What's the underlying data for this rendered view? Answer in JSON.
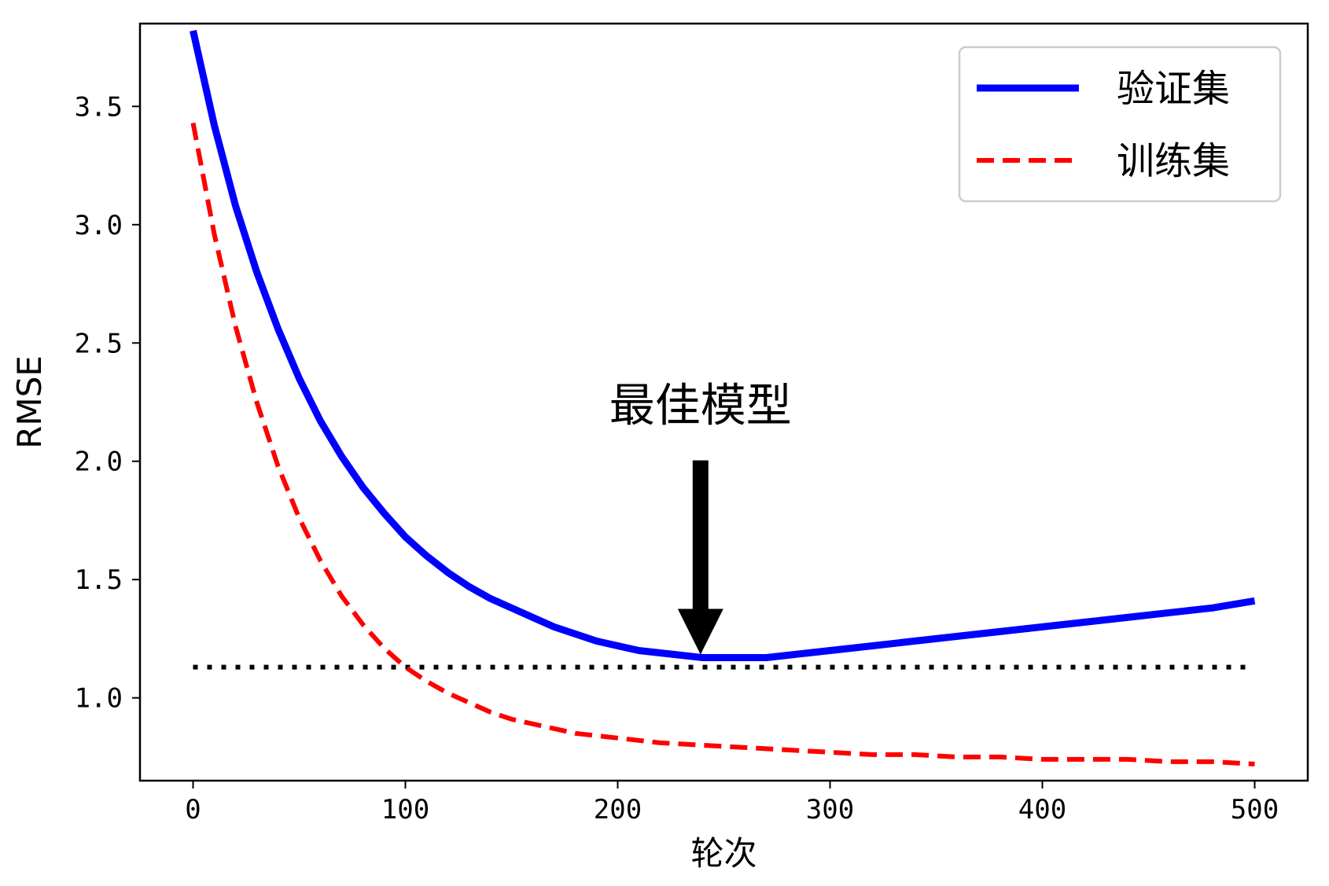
{
  "chart_data": {
    "type": "line",
    "xlabel": "轮次",
    "ylabel": "RMSE",
    "xlim": [
      -25,
      525
    ],
    "ylim": [
      0.65,
      3.85
    ],
    "xticks": [
      0,
      100,
      200,
      300,
      400,
      500
    ],
    "xtick_labels": [
      "0",
      "100",
      "200",
      "300",
      "400",
      "500"
    ],
    "yticks": [
      1.0,
      1.5,
      2.0,
      2.5,
      3.0,
      3.5
    ],
    "ytick_labels": [
      "1.0",
      "1.5",
      "2.0",
      "2.5",
      "3.0",
      "3.5"
    ],
    "grid": false,
    "legend_position": "top-right",
    "series": [
      {
        "name": "验证集",
        "color": "#0000ff",
        "style": "solid",
        "x": [
          0,
          10,
          20,
          30,
          40,
          50,
          60,
          70,
          80,
          90,
          100,
          110,
          120,
          130,
          140,
          150,
          160,
          170,
          180,
          190,
          200,
          210,
          220,
          230,
          240,
          250,
          260,
          270,
          280,
          290,
          300,
          320,
          340,
          360,
          380,
          400,
          420,
          440,
          460,
          480,
          500
        ],
        "y": [
          3.82,
          3.42,
          3.08,
          2.8,
          2.56,
          2.35,
          2.17,
          2.02,
          1.89,
          1.78,
          1.68,
          1.6,
          1.53,
          1.47,
          1.42,
          1.38,
          1.34,
          1.3,
          1.27,
          1.24,
          1.22,
          1.2,
          1.19,
          1.18,
          1.17,
          1.17,
          1.17,
          1.17,
          1.18,
          1.19,
          1.2,
          1.22,
          1.24,
          1.26,
          1.28,
          1.3,
          1.32,
          1.34,
          1.36,
          1.38,
          1.41
        ]
      },
      {
        "name": "训练集",
        "color": "#ff0000",
        "style": "dashed",
        "x": [
          0,
          10,
          20,
          30,
          40,
          50,
          60,
          70,
          80,
          90,
          100,
          110,
          120,
          130,
          140,
          150,
          160,
          170,
          180,
          190,
          200,
          220,
          240,
          260,
          280,
          300,
          320,
          340,
          360,
          380,
          400,
          420,
          440,
          460,
          480,
          500
        ],
        "y": [
          3.43,
          2.96,
          2.57,
          2.25,
          1.98,
          1.76,
          1.58,
          1.43,
          1.31,
          1.21,
          1.13,
          1.07,
          1.02,
          0.98,
          0.94,
          0.91,
          0.89,
          0.87,
          0.85,
          0.84,
          0.83,
          0.81,
          0.8,
          0.79,
          0.78,
          0.77,
          0.76,
          0.76,
          0.75,
          0.75,
          0.74,
          0.74,
          0.74,
          0.73,
          0.73,
          0.72
        ]
      },
      {
        "color": "#000000",
        "style": "dotted",
        "x": [
          0,
          500
        ],
        "y": [
          1.13,
          1.13
        ]
      }
    ],
    "annotation": {
      "text": "最佳模型",
      "point_x": 239,
      "point_y": 1.17,
      "text_y": 2.17
    }
  }
}
